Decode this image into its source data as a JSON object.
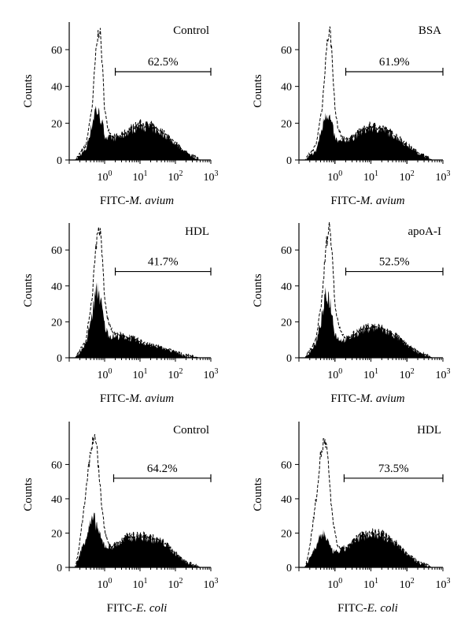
{
  "figure": {
    "panels": [
      {
        "id": "a",
        "condition": "Control",
        "percent": "62.5%",
        "xlabel_prefix": "FITC-",
        "xlabel_italic": "M. avium"
      },
      {
        "id": "b",
        "condition": "BSA",
        "percent": "61.9%",
        "xlabel_prefix": "FITC-",
        "xlabel_italic": "M. avium"
      },
      {
        "id": "c",
        "condition": "HDL",
        "percent": "41.7%",
        "xlabel_prefix": "FITC-",
        "xlabel_italic": "M. avium"
      },
      {
        "id": "d",
        "condition": "apoA-I",
        "percent": "52.5%",
        "xlabel_prefix": "FITC-",
        "xlabel_italic": "M. avium"
      },
      {
        "id": "e",
        "condition": "Control",
        "percent": "64.2%",
        "xlabel_prefix": "FITC-",
        "xlabel_italic": "E. coli"
      },
      {
        "id": "f",
        "condition": "HDL",
        "percent": "73.5%",
        "xlabel_prefix": "FITC-",
        "xlabel_italic": "E. coli"
      }
    ]
  },
  "chart_data": [
    {
      "type": "area",
      "panel": "a",
      "ylabel": "Counts",
      "xlabel": "FITC-M. avium",
      "xscale": "log",
      "xlim": [
        0.1,
        1000
      ],
      "ylim": [
        0,
        75
      ],
      "xticks": [
        "10⁰",
        "10¹",
        "10²",
        "10³"
      ],
      "yticks": [
        0,
        20,
        40,
        60
      ],
      "annotations": [
        "Control",
        "62.5%"
      ],
      "gate": {
        "from": 2,
        "to": 1000,
        "y": 48
      },
      "series": [
        {
          "style": "dashed outline",
          "x": [
            0.15,
            0.3,
            0.45,
            0.55,
            0.65,
            0.72,
            0.8,
            0.9,
            1.0,
            1.2,
            1.5,
            2,
            3,
            5,
            10,
            20,
            50,
            100,
            200,
            500
          ],
          "y": [
            0,
            8,
            30,
            55,
            68,
            72,
            62,
            45,
            28,
            18,
            14,
            12,
            13,
            16,
            19,
            18,
            14,
            9,
            4,
            0
          ]
        },
        {
          "style": "filled",
          "x": [
            0.15,
            0.3,
            0.45,
            0.55,
            0.65,
            0.72,
            0.8,
            0.9,
            1.0,
            1.2,
            1.5,
            2,
            3,
            5,
            10,
            20,
            50,
            100,
            200,
            500
          ],
          "y": [
            0,
            6,
            20,
            28,
            26,
            24,
            22,
            18,
            14,
            12,
            12,
            12,
            13,
            16,
            19,
            18,
            14,
            9,
            4,
            0
          ]
        }
      ]
    },
    {
      "type": "area",
      "panel": "b",
      "ylabel": "Counts",
      "xlabel": "FITC-M. avium",
      "xscale": "log",
      "xlim": [
        0.1,
        1000
      ],
      "ylim": [
        0,
        75
      ],
      "xticks": [
        "10⁰",
        "10¹",
        "10²",
        "10³"
      ],
      "yticks": [
        0,
        20,
        40,
        60
      ],
      "annotations": [
        "BSA",
        "61.9%"
      ],
      "gate": {
        "from": 2,
        "to": 1000,
        "y": 48
      },
      "series": [
        {
          "style": "dashed outline",
          "x": [
            0.15,
            0.3,
            0.45,
            0.55,
            0.65,
            0.72,
            0.8,
            0.9,
            1.0,
            1.2,
            1.5,
            2,
            3,
            5,
            10,
            20,
            50,
            100,
            200,
            500
          ],
          "y": [
            0,
            8,
            30,
            55,
            68,
            71,
            62,
            45,
            28,
            18,
            13,
            11,
            12,
            15,
            18,
            17,
            13,
            8,
            4,
            0
          ]
        },
        {
          "style": "filled",
          "x": [
            0.15,
            0.3,
            0.45,
            0.55,
            0.65,
            0.72,
            0.8,
            0.9,
            1.0,
            1.2,
            1.5,
            2,
            3,
            5,
            10,
            20,
            50,
            100,
            200,
            500
          ],
          "y": [
            0,
            5,
            18,
            26,
            25,
            23,
            20,
            16,
            12,
            10,
            10,
            11,
            12,
            15,
            18,
            17,
            13,
            8,
            4,
            0
          ]
        }
      ]
    },
    {
      "type": "area",
      "panel": "c",
      "ylabel": "Counts",
      "xlabel": "FITC-M. avium",
      "xscale": "log",
      "xlim": [
        0.1,
        1000
      ],
      "ylim": [
        0,
        75
      ],
      "xticks": [
        "10⁰",
        "10¹",
        "10²",
        "10³"
      ],
      "yticks": [
        0,
        20,
        40,
        60
      ],
      "annotations": [
        "HDL",
        "41.7%"
      ],
      "gate": {
        "from": 2,
        "to": 1000,
        "y": 48
      },
      "series": [
        {
          "style": "dashed outline",
          "x": [
            0.15,
            0.3,
            0.45,
            0.55,
            0.65,
            0.72,
            0.8,
            0.9,
            1.0,
            1.2,
            1.5,
            2,
            3,
            5,
            10,
            20,
            50,
            100,
            200,
            500
          ],
          "y": [
            0,
            10,
            35,
            60,
            70,
            72,
            64,
            50,
            33,
            22,
            16,
            13,
            12,
            11,
            9,
            7,
            5,
            3,
            1,
            0
          ]
        },
        {
          "style": "filled",
          "x": [
            0.15,
            0.3,
            0.45,
            0.55,
            0.65,
            0.72,
            0.8,
            0.9,
            1.0,
            1.2,
            1.5,
            2,
            3,
            5,
            10,
            20,
            50,
            100,
            200,
            500
          ],
          "y": [
            0,
            8,
            25,
            35,
            38,
            35,
            30,
            24,
            18,
            14,
            12,
            12,
            12,
            11,
            9,
            7,
            5,
            3,
            1,
            0
          ]
        }
      ]
    },
    {
      "type": "area",
      "panel": "d",
      "ylabel": "Counts",
      "xlabel": "FITC-M. avium",
      "xscale": "log",
      "xlim": [
        0.1,
        1000
      ],
      "ylim": [
        0,
        75
      ],
      "xticks": [
        "10⁰",
        "10¹",
        "10²",
        "10³"
      ],
      "yticks": [
        0,
        20,
        40,
        60
      ],
      "annotations": [
        "apoA-I",
        "52.5%"
      ],
      "gate": {
        "from": 2,
        "to": 1000,
        "y": 48
      },
      "series": [
        {
          "style": "dashed outline",
          "x": [
            0.15,
            0.3,
            0.45,
            0.55,
            0.65,
            0.72,
            0.8,
            0.9,
            1.0,
            1.2,
            1.5,
            2,
            3,
            5,
            10,
            20,
            50,
            100,
            200,
            500
          ],
          "y": [
            0,
            10,
            35,
            60,
            70,
            74,
            64,
            48,
            30,
            20,
            14,
            11,
            12,
            15,
            17,
            16,
            12,
            7,
            3,
            0
          ]
        },
        {
          "style": "filled",
          "x": [
            0.15,
            0.3,
            0.45,
            0.55,
            0.65,
            0.72,
            0.8,
            0.9,
            1.0,
            1.2,
            1.5,
            2,
            3,
            5,
            10,
            20,
            50,
            100,
            200,
            500
          ],
          "y": [
            0,
            8,
            24,
            34,
            35,
            32,
            27,
            20,
            14,
            11,
            10,
            10,
            12,
            15,
            17,
            16,
            12,
            7,
            3,
            0
          ]
        }
      ]
    },
    {
      "type": "area",
      "panel": "e",
      "ylabel": "Counts",
      "xlabel": "FITC-E. coli",
      "xscale": "log",
      "xlim": [
        0.1,
        1000
      ],
      "ylim": [
        0,
        85
      ],
      "xticks": [
        "10⁰",
        "10¹",
        "10²",
        "10³"
      ],
      "yticks": [
        0,
        20,
        40,
        60
      ],
      "annotations": [
        "Control",
        "64.2%"
      ],
      "gate": {
        "from": 1.8,
        "to": 1000,
        "y": 52
      },
      "series": [
        {
          "style": "dashed outline",
          "x": [
            0.15,
            0.2,
            0.3,
            0.4,
            0.5,
            0.6,
            0.7,
            0.8,
            1.0,
            1.2,
            1.5,
            2,
            3,
            5,
            10,
            20,
            50,
            100,
            200,
            500
          ],
          "y": [
            0,
            15,
            45,
            68,
            76,
            70,
            55,
            38,
            22,
            15,
            12,
            13,
            15,
            18,
            18,
            17,
            14,
            8,
            3,
            0
          ]
        },
        {
          "style": "filled",
          "x": [
            0.15,
            0.2,
            0.3,
            0.4,
            0.5,
            0.6,
            0.7,
            0.8,
            1.0,
            1.2,
            1.5,
            2,
            3,
            5,
            10,
            20,
            50,
            100,
            200,
            500
          ],
          "y": [
            0,
            8,
            18,
            26,
            28,
            25,
            20,
            16,
            13,
            12,
            12,
            13,
            15,
            18,
            18,
            17,
            14,
            8,
            3,
            0
          ]
        }
      ]
    },
    {
      "type": "area",
      "panel": "f",
      "ylabel": "Counts",
      "xlabel": "FITC-E. coli",
      "xscale": "log",
      "xlim": [
        0.1,
        1000
      ],
      "ylim": [
        0,
        85
      ],
      "xticks": [
        "10⁰",
        "10¹",
        "10²",
        "10³"
      ],
      "yticks": [
        0,
        20,
        40,
        60
      ],
      "annotations": [
        "HDL",
        "73.5%"
      ],
      "gate": {
        "from": 1.8,
        "to": 1000,
        "y": 52
      },
      "series": [
        {
          "style": "dashed outline",
          "x": [
            0.15,
            0.2,
            0.3,
            0.4,
            0.5,
            0.6,
            0.7,
            0.8,
            1.0,
            1.2,
            1.5,
            2,
            3,
            5,
            10,
            20,
            50,
            100,
            200,
            500
          ],
          "y": [
            0,
            12,
            40,
            65,
            74,
            68,
            52,
            35,
            20,
            12,
            10,
            11,
            14,
            18,
            20,
            19,
            14,
            8,
            3,
            0
          ]
        },
        {
          "style": "filled",
          "x": [
            0.15,
            0.2,
            0.3,
            0.4,
            0.5,
            0.6,
            0.7,
            0.8,
            1.0,
            1.2,
            1.5,
            2,
            3,
            5,
            10,
            20,
            50,
            100,
            200,
            500
          ],
          "y": [
            0,
            6,
            12,
            18,
            20,
            17,
            13,
            10,
            9,
            9,
            10,
            11,
            14,
            18,
            20,
            19,
            14,
            8,
            3,
            0
          ]
        }
      ]
    }
  ]
}
